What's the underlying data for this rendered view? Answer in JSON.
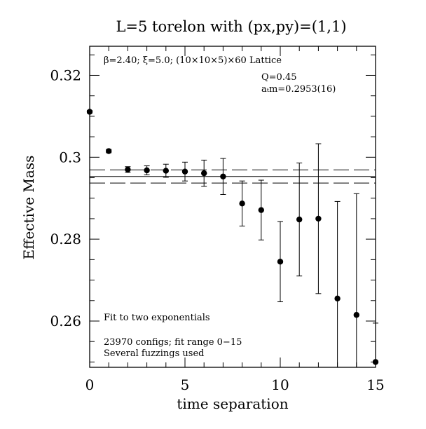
{
  "chart_data": {
    "type": "scatter",
    "title": "L=5 torelon with (px,py)=(1,1)",
    "xlabel": "time separation",
    "ylabel": "Effective Mass",
    "xlim": [
      0,
      15
    ],
    "ylim": [
      0.2487,
      0.3271
    ],
    "x_ticks": [
      "0",
      "5",
      "10",
      "15"
    ],
    "y_ticks": [
      "0.26",
      "0.28",
      "0.3",
      "0.32"
    ],
    "x_tick_values": [
      0,
      5,
      10,
      15
    ],
    "y_tick_values": [
      0.26,
      0.28,
      0.3,
      0.32
    ],
    "annotations": {
      "lattice": "β=2.40; ξ=5.0; (10×10×5)×60 Lattice",
      "q": "Q=0.45",
      "mass": "aₜm=0.2953(16)",
      "fit": "Fit to two exponentials",
      "configs": "23970 configs; fit range 0−15",
      "fuzz": "Several fuzzings used"
    },
    "fit_band": {
      "central": 0.2953,
      "upper": 0.2969,
      "lower": 0.2937
    },
    "series": [
      {
        "points": [
          {
            "x": 0,
            "y": 0.3111,
            "err": 0.0003
          },
          {
            "x": 1,
            "y": 0.3015,
            "err": 0.0004
          },
          {
            "x": 2,
            "y": 0.297,
            "err": 0.0007
          },
          {
            "x": 3,
            "y": 0.2968,
            "err": 0.0011
          },
          {
            "x": 4,
            "y": 0.2967,
            "err": 0.0016
          },
          {
            "x": 5,
            "y": 0.2965,
            "err": 0.0023
          },
          {
            "x": 6,
            "y": 0.2961,
            "err": 0.0032
          },
          {
            "x": 7,
            "y": 0.2953,
            "err": 0.0044
          },
          {
            "x": 8,
            "y": 0.2887,
            "err": 0.0055
          },
          {
            "x": 9,
            "y": 0.2871,
            "err": 0.0073
          },
          {
            "x": 10,
            "y": 0.2745,
            "err": 0.0098
          },
          {
            "x": 11,
            "y": 0.2848,
            "err": 0.0138
          },
          {
            "x": 12,
            "y": 0.285,
            "err": 0.0183
          },
          {
            "x": 13,
            "y": 0.2655,
            "err": 0.0237
          },
          {
            "x": 14,
            "y": 0.2615,
            "err": 0.0296
          },
          {
            "x": 15,
            "y": 0.25,
            "err": 0.0095
          }
        ]
      }
    ]
  }
}
